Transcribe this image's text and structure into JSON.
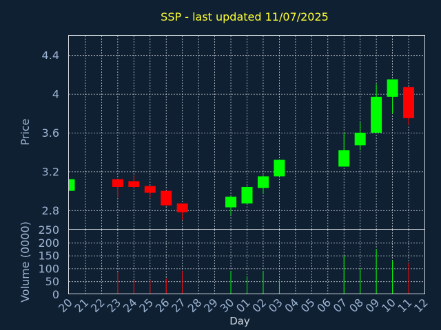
{
  "chart_data": {
    "type": "candlestick",
    "title": "SSP - last updated 11/07/2025",
    "xlabel": "Day",
    "price_panel": {
      "ylabel": "Price",
      "ylim": [
        2.6,
        4.6
      ],
      "yticks": [
        "2.8",
        "3.2",
        "3.6",
        "4",
        "4.4"
      ]
    },
    "volume_panel": {
      "ylabel": "Volume (0000)",
      "ylim": [
        0,
        250
      ],
      "yticks": [
        "0",
        "50",
        "100",
        "150",
        "200",
        "250"
      ]
    },
    "x_tick_labels": [
      "20",
      "21",
      "22",
      "23",
      "24",
      "25",
      "26",
      "27",
      "28",
      "29",
      "30",
      "01",
      "02",
      "03",
      "04",
      "05",
      "06",
      "07",
      "08",
      "09",
      "10",
      "11",
      "12"
    ],
    "colors": {
      "up": "#00ff00",
      "down": "#ff0000",
      "title": "#ffff33",
      "background": "#0f2033"
    },
    "candles": [
      {
        "day": "20",
        "index": 0,
        "open": 3.0,
        "high": 3.12,
        "low": 3.0,
        "close": 3.12,
        "volume": 0
      },
      {
        "day": "23",
        "index": 3,
        "open": 3.12,
        "high": 3.12,
        "low": 2.93,
        "close": 3.04,
        "volume": 85
      },
      {
        "day": "24",
        "index": 4,
        "open": 3.1,
        "high": 3.16,
        "low": 3.03,
        "close": 3.04,
        "volume": 55
      },
      {
        "day": "25",
        "index": 5,
        "open": 3.05,
        "high": 3.05,
        "low": 2.93,
        "close": 2.98,
        "volume": 55
      },
      {
        "day": "26",
        "index": 6,
        "open": 3.0,
        "high": 3.0,
        "low": 2.85,
        "close": 2.85,
        "volume": 60
      },
      {
        "day": "27",
        "index": 7,
        "open": 2.87,
        "high": 2.87,
        "low": 2.7,
        "close": 2.78,
        "volume": 90
      },
      {
        "day": "30",
        "index": 10,
        "open": 2.83,
        "high": 2.95,
        "low": 2.75,
        "close": 2.94,
        "volume": 90
      },
      {
        "day": "01",
        "index": 11,
        "open": 2.87,
        "high": 3.05,
        "low": 2.87,
        "close": 3.04,
        "volume": 70
      },
      {
        "day": "02",
        "index": 12,
        "open": 3.03,
        "high": 3.16,
        "low": 2.97,
        "close": 3.15,
        "volume": 90
      },
      {
        "day": "03",
        "index": 13,
        "open": 3.15,
        "high": 3.32,
        "low": 3.15,
        "close": 3.32,
        "volume": 50
      },
      {
        "day": "07",
        "index": 17,
        "open": 3.25,
        "high": 3.6,
        "low": 3.25,
        "close": 3.42,
        "volume": 150
      },
      {
        "day": "08",
        "index": 18,
        "open": 3.47,
        "high": 3.71,
        "low": 3.42,
        "close": 3.6,
        "volume": 100
      },
      {
        "day": "09",
        "index": 19,
        "open": 3.6,
        "high": 4.1,
        "low": 3.6,
        "close": 3.97,
        "volume": 175
      },
      {
        "day": "10",
        "index": 20,
        "open": 3.97,
        "high": 4.15,
        "low": 3.8,
        "close": 4.15,
        "volume": 130
      },
      {
        "day": "11",
        "index": 21,
        "open": 4.07,
        "high": 4.07,
        "low": 3.68,
        "close": 3.75,
        "volume": 120
      }
    ]
  }
}
